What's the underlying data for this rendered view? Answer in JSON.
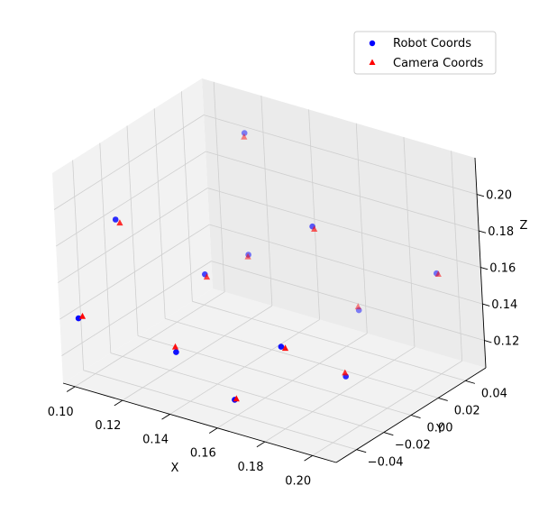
{
  "chart_data": {
    "type": "scatter",
    "projection": "3d",
    "title": "",
    "xlabel": "X",
    "ylabel": "Y",
    "zlabel": "Z",
    "xlim": [
      0.095,
      0.21
    ],
    "ylim": [
      -0.055,
      0.055
    ],
    "zlim": [
      0.105,
      0.22
    ],
    "xticks": [
      0.1,
      0.12,
      0.14,
      0.16,
      0.18,
      0.2
    ],
    "xtick_labels": [
      "0.10",
      "0.12",
      "0.14",
      "0.16",
      "0.18",
      "0.20"
    ],
    "yticks": [
      -0.04,
      -0.02,
      0.0,
      0.02,
      0.04
    ],
    "ytick_labels": [
      "−0.04",
      "−0.02",
      "0.00",
      "0.02",
      "0.04"
    ],
    "zticks": [
      0.12,
      0.14,
      0.16,
      0.18,
      0.2
    ],
    "ztick_labels": [
      "0.12",
      "0.14",
      "0.16",
      "0.18",
      "0.20"
    ],
    "grid": true,
    "legend_position": "top-right",
    "series": [
      {
        "name": "Robot Coords",
        "marker": "circle",
        "color": "#0000ff",
        "points": [
          [
            0.1,
            -0.02,
            0.18
          ],
          [
            0.115,
            0.05,
            0.2
          ],
          [
            0.1,
            -0.05,
            0.14
          ],
          [
            0.125,
            0.0,
            0.15
          ],
          [
            0.12,
            0.04,
            0.14
          ],
          [
            0.135,
            -0.04,
            0.13
          ],
          [
            0.16,
            0.02,
            0.18
          ],
          [
            0.165,
            -0.05,
            0.12
          ],
          [
            0.16,
            0.05,
            0.12
          ],
          [
            0.18,
            -0.04,
            0.15
          ],
          [
            0.195,
            -0.02,
            0.13
          ],
          [
            0.2,
            0.04,
            0.16
          ]
        ]
      },
      {
        "name": "Camera Coords",
        "marker": "triangle",
        "color": "#ff0000",
        "points": [
          [
            0.101,
            -0.02,
            0.179
          ],
          [
            0.114,
            0.05,
            0.198
          ],
          [
            0.101,
            -0.05,
            0.142
          ],
          [
            0.125,
            0.0,
            0.149
          ],
          [
            0.119,
            0.04,
            0.139
          ],
          [
            0.134,
            -0.04,
            0.133
          ],
          [
            0.16,
            0.02,
            0.179
          ],
          [
            0.165,
            -0.05,
            0.121
          ],
          [
            0.159,
            0.05,
            0.122
          ],
          [
            0.181,
            -0.04,
            0.15
          ],
          [
            0.194,
            -0.02,
            0.132
          ],
          [
            0.2,
            0.04,
            0.16
          ]
        ]
      }
    ]
  }
}
